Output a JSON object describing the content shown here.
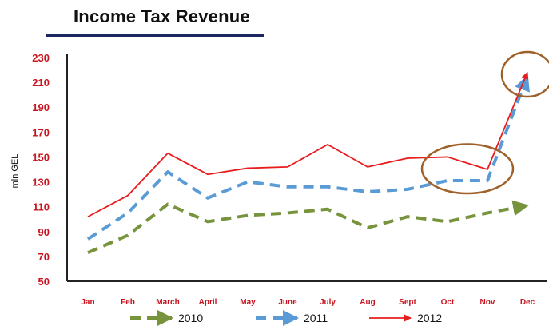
{
  "chart_data": {
    "type": "line",
    "title": "Income Tax Revenue",
    "ylabel": "mln GEL",
    "xlabel": "",
    "categories": [
      "Jan",
      "Feb",
      "March",
      "April",
      "May",
      "June",
      "July",
      "Aug",
      "Sept",
      "Oct",
      "Nov",
      "Dec"
    ],
    "ylim": [
      50,
      230
    ],
    "yticks": [
      50,
      70,
      90,
      110,
      130,
      150,
      170,
      190,
      210,
      230
    ],
    "grid": false,
    "legend_position": "bottom",
    "series": [
      {
        "name": "2010",
        "color": "#77933c",
        "style": "dashed",
        "values": [
          73,
          87,
          112,
          98,
          103,
          105,
          108,
          93,
          102,
          98,
          105,
          111
        ]
      },
      {
        "name": "2011",
        "color": "#5b9bd5",
        "style": "dashed",
        "values": [
          84,
          105,
          138,
          117,
          130,
          126,
          126,
          122,
          124,
          131,
          131,
          215
        ]
      },
      {
        "name": "2012",
        "color": "#e81c1c",
        "style": "solid",
        "values": [
          102,
          119,
          153,
          136,
          141,
          142,
          160,
          142,
          149,
          150,
          140,
          218
        ]
      }
    ],
    "annotations": [
      {
        "type": "circle",
        "color": "#a0602a",
        "covers": [
          "Oct",
          "Nov"
        ],
        "series": [
          "2011",
          "2012"
        ]
      },
      {
        "type": "circle",
        "color": "#a0602a",
        "covers": [
          "Dec"
        ],
        "series": [
          "2011",
          "2012"
        ]
      }
    ]
  }
}
